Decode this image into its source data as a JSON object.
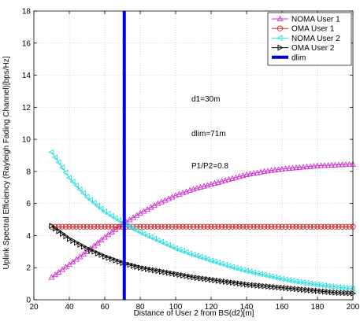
{
  "chart_data": {
    "type": "line",
    "xlabel": "Distance of User 2 from BS(d2)[m]",
    "ylabel": "Uplink Spectral Efficiency (Rayleigh Fading Channel)[bps/Hz]",
    "xlim": [
      20,
      200
    ],
    "ylim": [
      0,
      18
    ],
    "xticks": [
      20,
      40,
      60,
      80,
      100,
      120,
      140,
      160,
      180,
      200
    ],
    "yticks": [
      0,
      2,
      4,
      6,
      8,
      10,
      12,
      14,
      16,
      18
    ],
    "grid": true,
    "legend_position": "top-right",
    "annotations": [
      "d1=30m",
      "dlim=71m",
      "P1/P2=0.8"
    ],
    "series": [
      {
        "name": "NOMA User 1",
        "color": "#cc33cc",
        "marker": "triangle-up",
        "x": [
          30,
          40,
          50,
          60,
          70,
          80,
          90,
          100,
          110,
          120,
          130,
          140,
          150,
          160,
          170,
          180,
          190,
          200
        ],
        "y": [
          1.4,
          2.2,
          3.0,
          3.9,
          4.7,
          5.4,
          6.0,
          6.5,
          6.9,
          7.2,
          7.5,
          7.8,
          8.0,
          8.15,
          8.25,
          8.35,
          8.4,
          8.45
        ]
      },
      {
        "name": "OMA User 1",
        "color": "#cc2222",
        "marker": "circle",
        "x": [
          30,
          40,
          50,
          60,
          70,
          80,
          90,
          100,
          110,
          120,
          130,
          140,
          150,
          160,
          170,
          180,
          190,
          200
        ],
        "y": [
          4.55,
          4.55,
          4.55,
          4.55,
          4.55,
          4.55,
          4.55,
          4.55,
          4.55,
          4.55,
          4.55,
          4.55,
          4.55,
          4.55,
          4.55,
          4.55,
          4.55,
          4.55
        ]
      },
      {
        "name": "NOMA User 2",
        "color": "#33dddd",
        "marker": "triangle-left",
        "x": [
          30,
          40,
          50,
          60,
          70,
          80,
          90,
          100,
          110,
          120,
          130,
          140,
          150,
          160,
          170,
          180,
          190,
          200
        ],
        "y": [
          9.2,
          7.6,
          6.4,
          5.5,
          4.8,
          4.2,
          3.7,
          3.2,
          2.8,
          2.45,
          2.1,
          1.8,
          1.55,
          1.3,
          1.1,
          0.95,
          0.8,
          0.7
        ]
      },
      {
        "name": "OMA User 2",
        "color": "#000000",
        "marker": "triangle-right",
        "x": [
          30,
          40,
          50,
          60,
          70,
          80,
          90,
          100,
          110,
          120,
          130,
          140,
          150,
          160,
          170,
          180,
          190,
          200
        ],
        "y": [
          4.6,
          3.8,
          3.2,
          2.7,
          2.3,
          2.0,
          1.8,
          1.6,
          1.4,
          1.25,
          1.1,
          0.95,
          0.85,
          0.75,
          0.65,
          0.55,
          0.45,
          0.4
        ]
      },
      {
        "name": "dlim",
        "color": "#0000dd",
        "marker": "none",
        "x": [
          71,
          71
        ],
        "y": [
          0,
          18
        ]
      }
    ]
  }
}
